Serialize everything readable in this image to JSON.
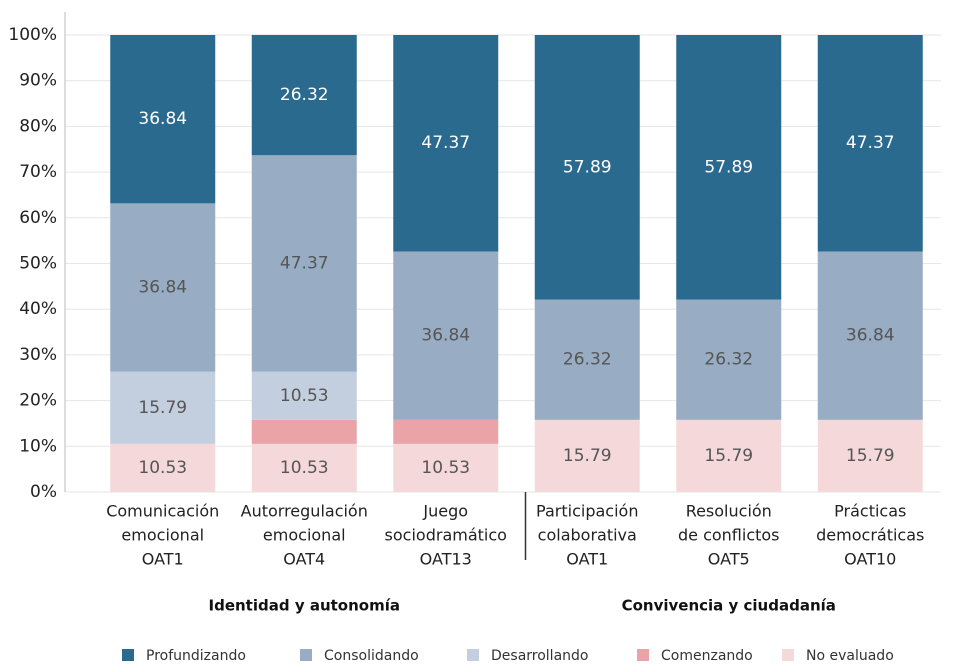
{
  "chart_data": {
    "type": "stacked_bar",
    "categories": [
      [
        "Comunicación",
        "emocional",
        "OAT1"
      ],
      [
        "Autorregulación",
        "emocional",
        "OAT4"
      ],
      [
        "Juego",
        "sociodramático",
        "OAT13"
      ],
      [
        "Participación",
        "colaborativa",
        "OAT1"
      ],
      [
        "Resolución",
        "de conflictos",
        "OAT5"
      ],
      [
        "Prácticas",
        "democráticas",
        "OAT10"
      ]
    ],
    "groups": [
      "Identidad y autonomía",
      "Convivencia y ciudadanía"
    ],
    "series": [
      {
        "name": "No evaluado",
        "color": "#f5d9da",
        "label_color": "#555555",
        "show_labels": true,
        "values": [
          10.53,
          10.53,
          10.53,
          15.79,
          15.79,
          15.79
        ]
      },
      {
        "name": "Comenzando",
        "color": "#eaa4a8",
        "label_color": "#555555",
        "show_labels": false,
        "values": [
          0,
          5.26,
          5.26,
          0,
          0,
          0
        ]
      },
      {
        "name": "Desarrollando",
        "color": "#c3cfdf",
        "label_color": "#555555",
        "show_labels": true,
        "values": [
          15.79,
          10.53,
          0,
          0,
          0,
          0
        ]
      },
      {
        "name": "Consolidando",
        "color": "#98acc4",
        "label_color": "#555555",
        "show_labels": true,
        "values": [
          36.84,
          47.37,
          36.84,
          26.32,
          26.32,
          36.84
        ]
      },
      {
        "name": "Profundizando",
        "color": "#2a6a8e",
        "label_color": "#ffffff",
        "show_labels": true,
        "values": [
          36.84,
          26.32,
          47.37,
          57.89,
          57.89,
          47.37
        ]
      }
    ],
    "legend_order": [
      4,
      3,
      2,
      1,
      0
    ],
    "ylim": [
      0,
      100
    ],
    "yticks": [
      {
        "value": 0,
        "label": "0%"
      },
      {
        "value": 10,
        "label": "10%"
      },
      {
        "value": 20,
        "label": "20%"
      },
      {
        "value": 30,
        "label": "30%"
      },
      {
        "value": 40,
        "label": "40%"
      },
      {
        "value": 50,
        "label": "50%"
      },
      {
        "value": 60,
        "label": "60%"
      },
      {
        "value": 70,
        "label": "70%"
      },
      {
        "value": 80,
        "label": "80%"
      },
      {
        "value": 90,
        "label": "90%"
      },
      {
        "value": 100,
        "label": "100%"
      }
    ],
    "grid": true
  }
}
